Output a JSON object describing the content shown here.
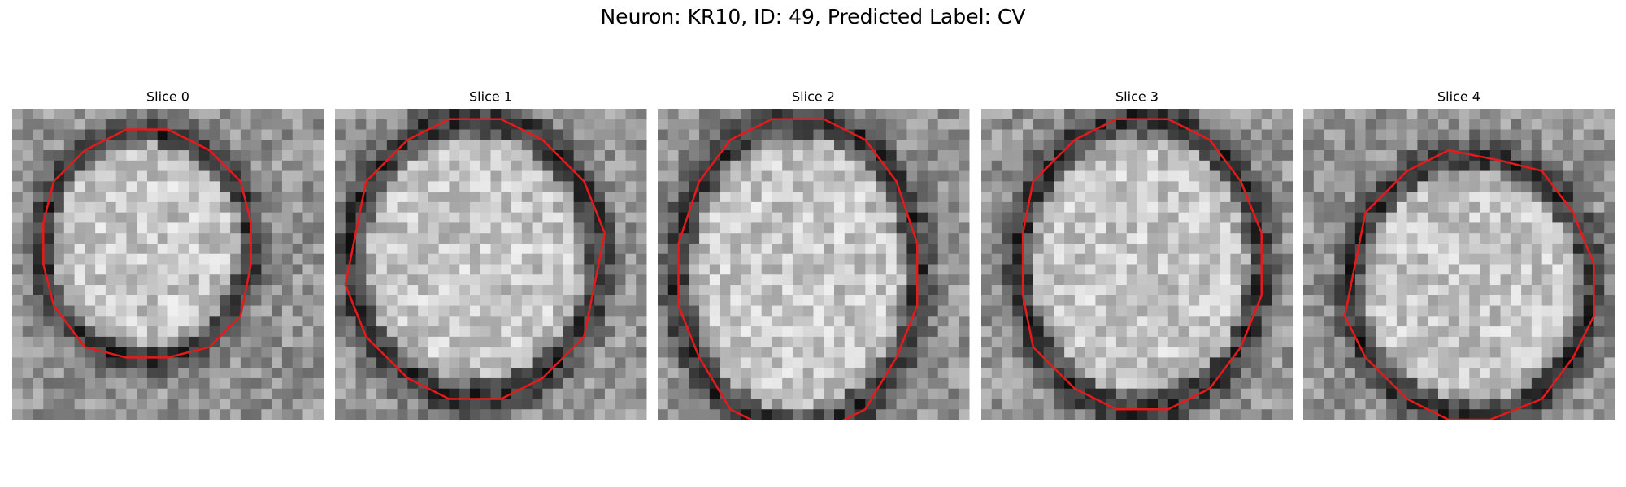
{
  "title": "Neuron: KR10, ID: 49, Predicted Label: CV",
  "panels": [
    {
      "title": "Slice 0"
    },
    {
      "title": "Slice 1"
    },
    {
      "title": "Slice 2"
    },
    {
      "title": "Slice 3"
    },
    {
      "title": "Slice 4"
    }
  ]
}
